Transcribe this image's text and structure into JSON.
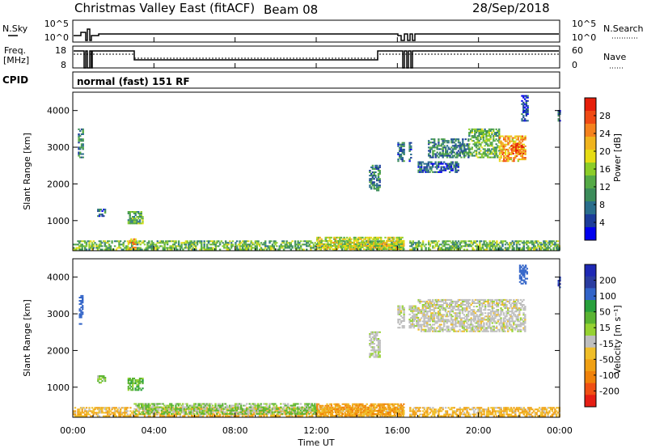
{
  "header": {
    "title": "Christmas Valley East (fitACF)",
    "beam": "Beam 08",
    "date": "28/Sep/2018"
  },
  "status_panel": {
    "nsky_label": "N.Sky",
    "nsearch_label": "N.Search",
    "nsky_ticks": [
      "10^5",
      "10^0"
    ],
    "nsearch_ticks": [
      "10^5",
      "10^0"
    ],
    "freq_label": "Freq.",
    "freq_unit": "[MHz]",
    "freq_ticks": [
      "18",
      "8"
    ],
    "nave_label": "Nave",
    "nave_ticks": [
      "60",
      "0"
    ],
    "cpid_label": "CPID",
    "cpid_value": "normal (fast) 151 RF"
  },
  "x_axis": {
    "label": "Time UT",
    "ticks": [
      "00:00",
      "04:00",
      "08:00",
      "12:00",
      "16:00",
      "20:00",
      "00:00"
    ]
  },
  "chart_data": [
    {
      "type": "heatmap",
      "quantity": "Power",
      "x": "Time UT (hours)",
      "xlim": [
        0,
        24
      ],
      "ylabel": "Slant Range [km]",
      "ylim": [
        180,
        4500
      ],
      "yticks": [
        "1000",
        "2000",
        "3000",
        "4000"
      ],
      "colorbar": {
        "label": "Power [dB]",
        "ticks": [
          "4",
          "8",
          "12",
          "16",
          "20",
          "24",
          "28"
        ],
        "colors": [
          "#0000ee",
          "#1c3c9a",
          "#2a6e8c",
          "#3c8c5a",
          "#55aa46",
          "#8ccd28",
          "#e6dc14",
          "#f0b41e",
          "#f5821e",
          "#f04a14",
          "#e61e0a"
        ]
      },
      "regions": [
        {
          "t0": 0.0,
          "t1": 24.0,
          "r0": 190,
          "r1": 420,
          "val": 14
        },
        {
          "t0": 2.7,
          "t1": 3.1,
          "r0": 200,
          "r1": 500,
          "val": 22
        },
        {
          "t0": 12.0,
          "t1": 16.3,
          "r0": 200,
          "r1": 550,
          "val": 18
        },
        {
          "t0": 0.25,
          "t1": 0.5,
          "r0": 2700,
          "r1": 3500,
          "val": 10
        },
        {
          "t0": 1.2,
          "t1": 1.6,
          "r0": 1100,
          "r1": 1300,
          "val": 8
        },
        {
          "t0": 2.7,
          "t1": 3.4,
          "r0": 900,
          "r1": 1250,
          "val": 13
        },
        {
          "t0": 14.6,
          "t1": 15.1,
          "r0": 1800,
          "r1": 2500,
          "val": 10
        },
        {
          "t0": 16.0,
          "t1": 16.7,
          "r0": 2600,
          "r1": 3100,
          "val": 9
        },
        {
          "t0": 17.0,
          "t1": 19.0,
          "r0": 2300,
          "r1": 2600,
          "val": 8
        },
        {
          "t0": 17.5,
          "t1": 19.5,
          "r0": 2700,
          "r1": 3200,
          "val": 10
        },
        {
          "t0": 19.5,
          "t1": 21.0,
          "r0": 2700,
          "r1": 3500,
          "val": 14
        },
        {
          "t0": 21.0,
          "t1": 22.3,
          "r0": 2600,
          "r1": 3300,
          "val": 22
        },
        {
          "t0": 21.6,
          "t1": 22.2,
          "r0": 2800,
          "r1": 3100,
          "val": 27
        },
        {
          "t0": 22.1,
          "t1": 22.4,
          "r0": 3700,
          "r1": 4400,
          "val": 6
        },
        {
          "t0": 23.9,
          "t1": 24.0,
          "r0": 3700,
          "r1": 4000,
          "val": 8
        }
      ]
    },
    {
      "type": "heatmap",
      "quantity": "Velocity",
      "x": "Time UT (hours)",
      "xlim": [
        0,
        24
      ],
      "ylabel": "Slant Range [km]",
      "ylim": [
        180,
        4500
      ],
      "yticks": [
        "1000",
        "2000",
        "3000",
        "4000"
      ],
      "colorbar": {
        "label": "Velocity [m s⁻¹]",
        "ticks": [
          "200",
          "100",
          "50",
          "15",
          "-15",
          "-50",
          "-100",
          "-200"
        ],
        "colors": [
          "#1e28b4",
          "#2a3ca0",
          "#3264c8",
          "#28a03c",
          "#5ab432",
          "#96d232",
          "#bebebe",
          "#f0be28",
          "#f0a014",
          "#f0820a",
          "#f05014",
          "#e61e14"
        ]
      },
      "regions": [
        {
          "t0": 0.0,
          "t1": 24.0,
          "r0": 190,
          "r1": 420,
          "val": -30
        },
        {
          "t0": 3.0,
          "t1": 12.0,
          "r0": 250,
          "r1": 560,
          "val": 25
        },
        {
          "t0": 12.0,
          "t1": 16.3,
          "r0": 200,
          "r1": 550,
          "val": -40
        },
        {
          "t0": 0.3,
          "t1": 0.5,
          "r0": 2700,
          "r1": 3500,
          "val": 180
        },
        {
          "t0": 1.2,
          "t1": 1.6,
          "r0": 1100,
          "r1": 1300,
          "val": 30
        },
        {
          "t0": 2.7,
          "t1": 3.4,
          "r0": 900,
          "r1": 1250,
          "val": 40
        },
        {
          "t0": 14.6,
          "t1": 15.1,
          "r0": 1800,
          "r1": 2500,
          "val": 5
        },
        {
          "t0": 16.0,
          "t1": 17.0,
          "r0": 2600,
          "r1": 3200,
          "val": 2
        },
        {
          "t0": 17.0,
          "t1": 22.3,
          "r0": 2500,
          "r1": 3400,
          "val": 0
        },
        {
          "t0": 22.0,
          "t1": 22.4,
          "r0": 3800,
          "r1": 4300,
          "val": 150
        },
        {
          "t0": 23.9,
          "t1": 24.0,
          "r0": 3700,
          "r1": 4000,
          "val": 200
        }
      ]
    }
  ]
}
